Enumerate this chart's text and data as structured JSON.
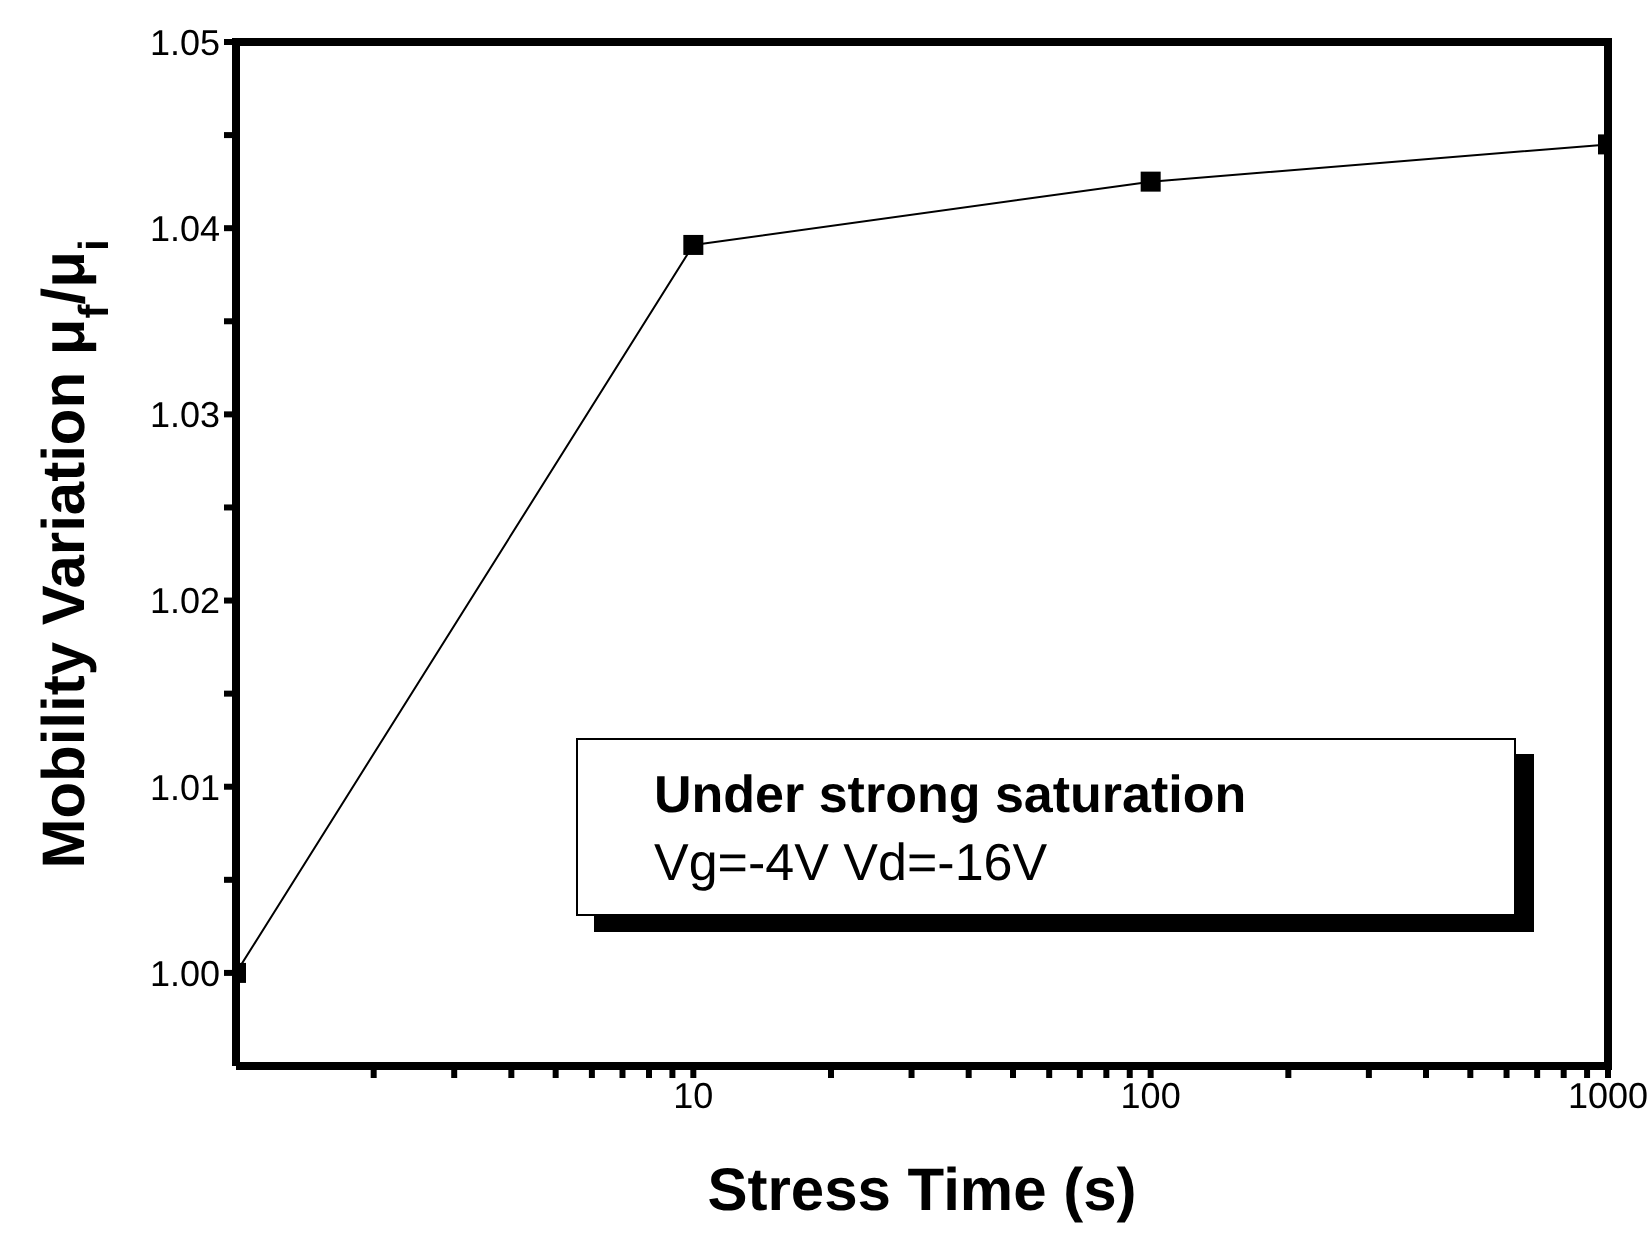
{
  "chart_data": {
    "type": "line",
    "xlabel": "Stress Time (s)",
    "ylabel": "Mobility Variation μ$_{f}$/μ$_{i}$",
    "x": [
      1,
      10,
      100,
      1000
    ],
    "series": [
      {
        "color": "#000000",
        "values": [
          1.0,
          1.0391,
          1.0425,
          1.0445
        ]
      }
    ],
    "xlim": [
      1,
      1000
    ],
    "log": "x",
    "xticks": [
      {
        "value": 2,
        "label": null
      },
      {
        "value": 3,
        "label": null
      },
      {
        "value": 4,
        "label": null
      },
      {
        "value": 5,
        "label": null
      },
      {
        "value": 6,
        "label": null
      },
      {
        "value": 7,
        "label": null
      },
      {
        "value": 8,
        "label": null
      },
      {
        "value": 9,
        "label": null
      },
      10,
      {
        "value": 20,
        "label": null
      },
      {
        "value": 30,
        "label": null
      },
      {
        "value": 40,
        "label": null
      },
      {
        "value": 50,
        "label": null
      },
      {
        "value": 60,
        "label": null
      },
      {
        "value": 70,
        "label": null
      },
      {
        "value": 80,
        "label": null
      },
      {
        "value": 90,
        "label": null
      },
      100,
      {
        "value": 200,
        "label": null
      },
      {
        "value": 300,
        "label": null
      },
      {
        "value": 400,
        "label": null
      },
      {
        "value": 500,
        "label": null
      },
      {
        "value": 600,
        "label": null
      },
      {
        "value": 700,
        "label": null
      },
      {
        "value": 800,
        "label": null
      },
      {
        "value": 900,
        "label": null
      },
      1000
    ],
    "ylim": [
      0.995,
      1.05
    ],
    "yticks": [
      {
        "value": 1.0,
        "label": "1.00"
      },
      {
        "value": 1.005,
        "label": null
      },
      {
        "value": 1.01,
        "label": "1.01"
      },
      {
        "value": 1.015,
        "label": null
      },
      {
        "value": 1.02,
        "label": "1.02"
      },
      {
        "value": 1.025,
        "label": null
      },
      {
        "value": 1.03,
        "label": "1.03"
      },
      {
        "value": 1.035,
        "label": null
      },
      {
        "value": 1.04,
        "label": "1.04"
      },
      {
        "value": 1.045,
        "label": null
      },
      {
        "value": 1.05,
        "label": "1.05"
      }
    ],
    "grid": false,
    "legend": false,
    "marker": "square",
    "line_style": "solid",
    "annotations": [
      "Under strong saturation",
      "Vg=-4V Vd=-16V"
    ]
  }
}
